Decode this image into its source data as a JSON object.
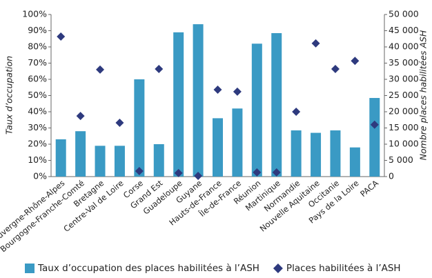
{
  "chart_data": {
    "type": "bar",
    "categories": [
      "Auvergne-Rhône-Alpes",
      "Bourgogne-Franche-Comté",
      "Bretagne",
      "Centre-Val de Loire",
      "Corse",
      "Grand Est",
      "Guadeloupe",
      "Guyane",
      "Hauts-de-France",
      "Île-de-France",
      "Réunion",
      "Martinique",
      "Normandie",
      "Nouvelle Aquitaine",
      "Occitanie",
      "Pays de la Loire",
      "PACA"
    ],
    "series": [
      {
        "name": "Taux d’occupation des places habilitées à l’ASH",
        "type": "bar",
        "color": "#3a9ac4",
        "values": [
          23,
          28,
          19,
          19,
          60,
          20,
          89,
          94,
          36,
          42,
          82,
          88.5,
          28.5,
          27,
          28.5,
          18,
          48.5
        ]
      },
      {
        "name": "Places habilitées à l’ASH",
        "type": "scatter",
        "axis": "y2",
        "color": "#2e3a7e",
        "values": [
          43200,
          18700,
          33000,
          16600,
          1700,
          33200,
          1100,
          200,
          26800,
          26200,
          1300,
          1300,
          20000,
          41100,
          33200,
          35700,
          16000
        ]
      }
    ],
    "ylabel": "Taux d’occupation",
    "y2label": "Nombre places habilitées ASH",
    "ylim": [
      0,
      100
    ],
    "yticks": [
      {
        "value": 0,
        "label": "0%"
      },
      {
        "value": 10,
        "label": "10%"
      },
      {
        "value": 20,
        "label": "20%"
      },
      {
        "value": 30,
        "label": "30%"
      },
      {
        "value": 40,
        "label": "40%"
      },
      {
        "value": 50,
        "label": "50%"
      },
      {
        "value": 60,
        "label": "60%"
      },
      {
        "value": 70,
        "label": "70%"
      },
      {
        "value": 80,
        "label": "80%"
      },
      {
        "value": 90,
        "label": "90%"
      },
      {
        "value": 100,
        "label": "100%"
      }
    ],
    "y2lim": [
      0,
      50000
    ],
    "y2ticks": [
      0,
      {
        "value": 5000,
        "label": "5 000"
      },
      {
        "value": 10000,
        "label": "10 000"
      },
      {
        "value": 15000,
        "label": "15 000"
      },
      {
        "value": 20000,
        "label": "20 000"
      },
      {
        "value": 25000,
        "label": "25 000"
      },
      {
        "value": 30000,
        "label": "30 000"
      },
      {
        "value": 35000,
        "label": "35 000"
      },
      {
        "value": 40000,
        "label": "40 000"
      },
      {
        "value": 45000,
        "label": "45 000"
      },
      {
        "value": 50000,
        "label": "50 000"
      }
    ],
    "grid": false,
    "legend": "bottom"
  }
}
